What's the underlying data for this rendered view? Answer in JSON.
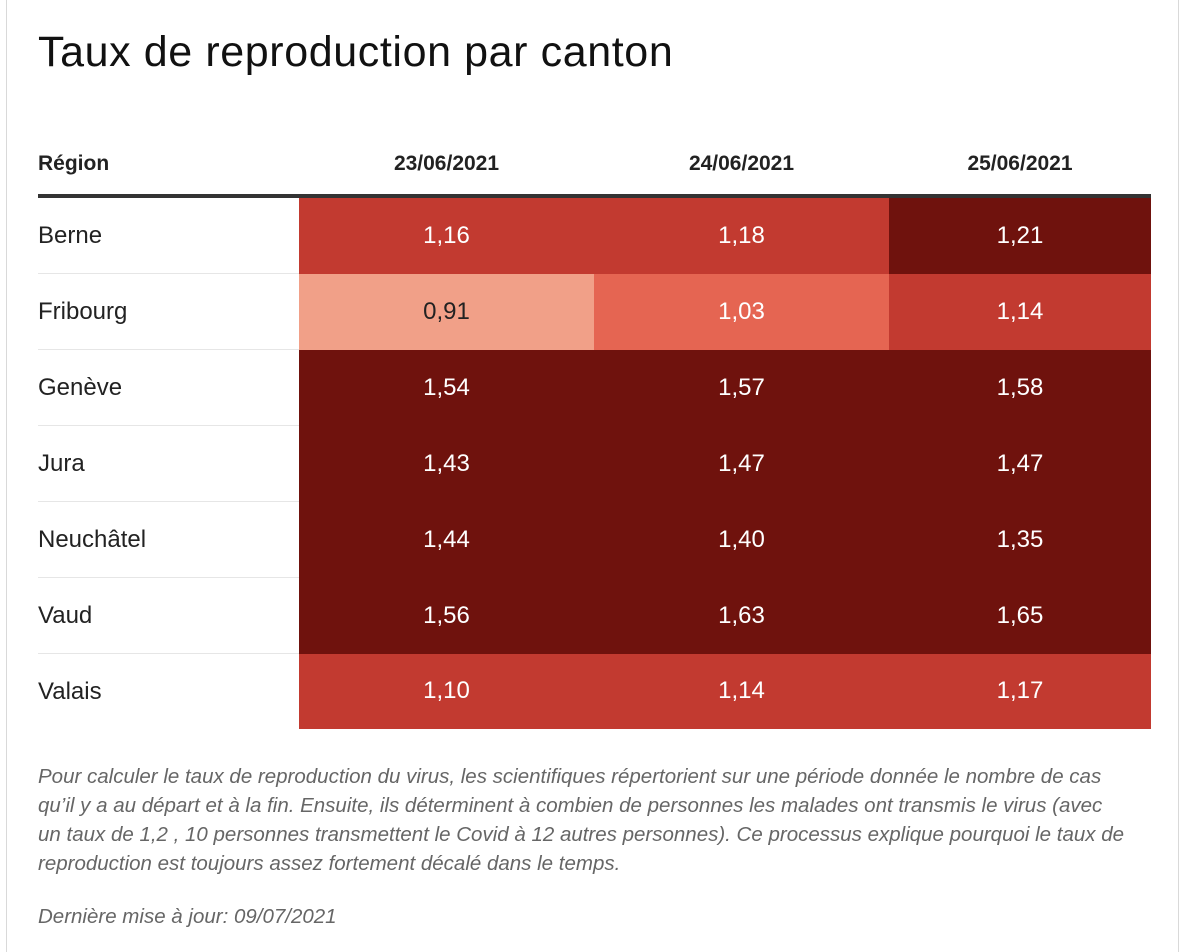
{
  "title": "Taux de reproduction par canton",
  "colors": {
    "lowest": "#f1a088",
    "low": "#e56552",
    "mid": "#c23a30",
    "high": "#6f120d",
    "text_light": "#ffffff",
    "text_dark": "#222222"
  },
  "chart_data": {
    "type": "table",
    "columns": [
      "Région",
      "23/06/2021",
      "24/06/2021",
      "25/06/2021"
    ],
    "rows": [
      {
        "region": "Berne",
        "values": [
          "1,16",
          "1,18",
          "1,21"
        ],
        "shades": [
          "mid",
          "mid",
          "high"
        ]
      },
      {
        "region": "Fribourg",
        "values": [
          "0,91",
          "1,03",
          "1,14"
        ],
        "shades": [
          "lowest",
          "low",
          "mid"
        ]
      },
      {
        "region": "Genève",
        "values": [
          "1,54",
          "1,57",
          "1,58"
        ],
        "shades": [
          "high",
          "high",
          "high"
        ]
      },
      {
        "region": "Jura",
        "values": [
          "1,43",
          "1,47",
          "1,47"
        ],
        "shades": [
          "high",
          "high",
          "high"
        ]
      },
      {
        "region": "Neuchâtel",
        "values": [
          "1,44",
          "1,40",
          "1,35"
        ],
        "shades": [
          "high",
          "high",
          "high"
        ]
      },
      {
        "region": "Vaud",
        "values": [
          "1,56",
          "1,63",
          "1,65"
        ],
        "shades": [
          "high",
          "high",
          "high"
        ]
      },
      {
        "region": "Valais",
        "values": [
          "1,10",
          "1,14",
          "1,17"
        ],
        "shades": [
          "mid",
          "mid",
          "mid"
        ]
      }
    ]
  },
  "note": "Pour calculer le taux de reproduction du virus, les scientifiques répertorient sur une période donnée le nombre de cas qu’il y a au départ et à la fin. Ensuite, ils déterminent à combien de personnes les malades ont transmis le virus (avec un taux de 1,2 , 10 personnes transmettent le Covid à 12 autres personnes). Ce processus explique pourquoi le taux de reproduction est toujours assez fortement décalé dans le temps.",
  "updated": "Dernière mise à jour: 09/07/2021"
}
